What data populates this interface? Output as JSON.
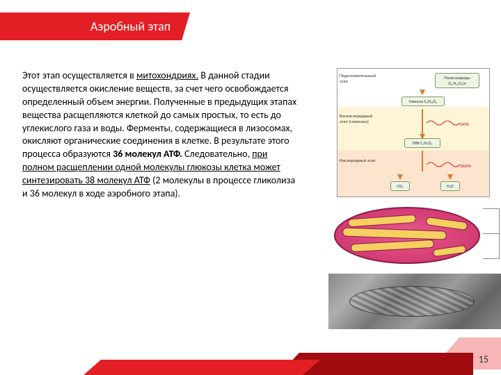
{
  "header": {
    "title": "Аэробный этап"
  },
  "body": {
    "html": "Этот этап осуществляется в <u>митохондриях.</u> В данной стадии осуществляется окисление веществ, за счет чего освобождается определенный объем энергии. Полученные в предыдущих этапах вещества расщепляются клеткой до самых простых, то есть до углекислого газа и воды. Ферменты, содержащиеся в лизосомах, окисляют органические соединения в клетке. В результате этого процесса образуются <b>36 молекул АТФ.</b> Следовательно, <u>при полном расщеплении одной молекулы глюкозы клетка может синтезировать 38 молекул АТФ</u> (2 молекулы в процессе гликолиза и 36 молекул в ходе аэробного этапа)."
  },
  "stages": {
    "row1_label": "Подготовительный этап",
    "row2_label": "Бескислородный этап (гликолиз)",
    "row3_label": "Кислородный этап",
    "box_poly": "Полисахариды (C₆H₁₀O₅)n",
    "box_glucose": "Глюкоза C₆H₁₂O₆",
    "box_pvk": "ПВК C₃H₄O₃",
    "box_co2": "CO₂",
    "box_h2o": "H₂O",
    "atp2": "2АТФ",
    "atp36": "36АТФ",
    "colors": {
      "row1_bg": "#ffffff",
      "row2_bg": "#fef5d6",
      "row3_bg": "#fde4cf",
      "sep": "#c9a82b",
      "arrow": "#d97c2b"
    }
  },
  "page_number": "15",
  "theme": {
    "red": "#e31e24",
    "dark_red": "#a00c10",
    "light_red": "#f7a8a8"
  }
}
